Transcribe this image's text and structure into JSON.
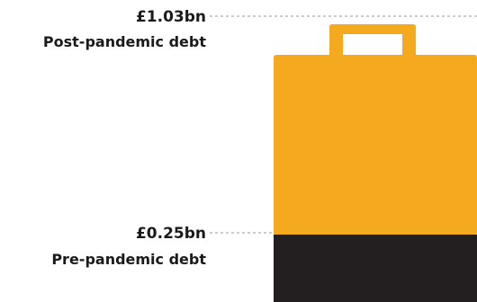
{
  "chart_data": {
    "type": "bar",
    "title": "",
    "xlabel": "",
    "ylabel": "",
    "unit": "£bn",
    "series": [
      {
        "name": "Post-pandemic debt",
        "value": 1.03,
        "label": "£1.03bn",
        "color": "#f4a91f"
      },
      {
        "name": "Pre-pandemic debt",
        "value": 0.25,
        "label": "£0.25bn",
        "color": "#231f20"
      }
    ],
    "ylim": [
      0,
      1.03
    ],
    "grid": false,
    "legend": "none"
  },
  "annotations": {
    "top_value": "£1.03bn",
    "top_caption": "Post-pandemic debt",
    "bottom_value": "£0.25bn",
    "bottom_caption": "Pre-pandemic debt"
  },
  "icon": "shopping-bag-icon"
}
